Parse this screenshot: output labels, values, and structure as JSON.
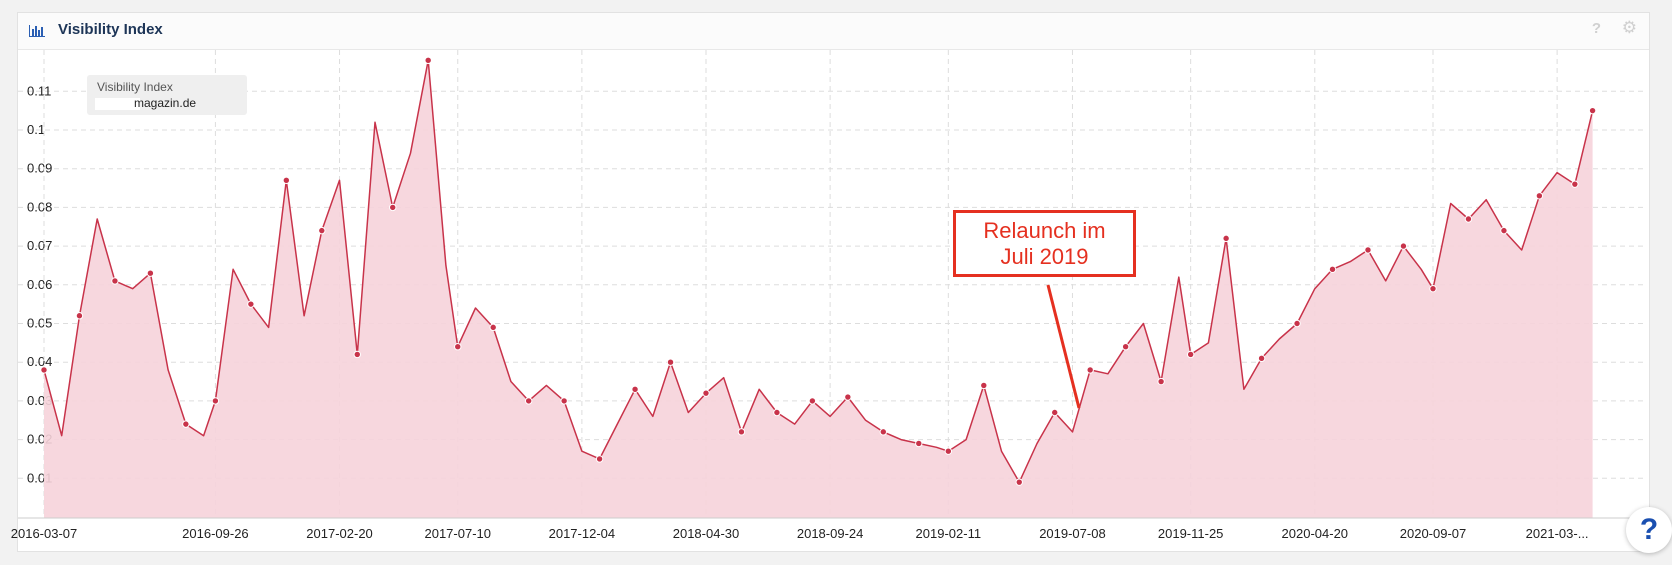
{
  "header": {
    "title": "Visibility Index",
    "icons": {
      "chart": "bar-chart-icon",
      "help": "help-icon",
      "settings": "gear-icon"
    },
    "help_label": "?"
  },
  "legend": {
    "title": "Visibility Index",
    "domain": "magazin.de"
  },
  "annotation": {
    "line1": "Relaunch im",
    "line2": "Juli 2019"
  },
  "help_fab_label": "?",
  "colors": {
    "line": "#c8334a",
    "fill": "#f6d3da",
    "annotation": "#e53020",
    "title": "#1d3557",
    "grid": "#dddddd"
  },
  "chart_data": {
    "type": "area",
    "title": "",
    "xlabel": "",
    "ylabel": "",
    "grid": true,
    "legend_position": "top-left",
    "ylim": [
      0,
      0.12
    ],
    "yticks": [
      0.01,
      0.02,
      0.03,
      0.04,
      0.05,
      0.06,
      0.07,
      0.08,
      0.09,
      0.1,
      0.11
    ],
    "ytick_labels": [
      "0.01",
      "0.02",
      "0.03",
      "0.04",
      "0.05",
      "0.06",
      "0.07",
      "0.08",
      "0.09",
      "0.1",
      "0.11"
    ],
    "xticks": [
      "2016-03-07",
      "2016-09-26",
      "2017-02-20",
      "2017-07-10",
      "2017-12-04",
      "2018-04-30",
      "2018-09-24",
      "2019-02-11",
      "2019-07-08",
      "2019-11-25",
      "2020-04-20",
      "2020-09-07",
      "2021-03-..."
    ],
    "xtick_labels": [
      "2016-03-07",
      "2016-09-26",
      "2017-02-20",
      "2017-07-10",
      "2017-12-04",
      "2018-04-30",
      "2018-09-24",
      "2019-02-11",
      "2019-07-08",
      "2019-11-25",
      "2020-04-20",
      "2020-09-07",
      "2021-03-..."
    ],
    "series": [
      {
        "name": "magazin.de",
        "x": [
          "2016-03-07",
          "2016-03-28",
          "2016-04-18",
          "2016-05-09",
          "2016-05-30",
          "2016-06-20",
          "2016-07-11",
          "2016-08-01",
          "2016-08-22",
          "2016-09-12",
          "2016-09-26",
          "2016-10-17",
          "2016-11-07",
          "2016-11-28",
          "2016-12-19",
          "2017-01-09",
          "2017-01-30",
          "2017-02-20",
          "2017-03-13",
          "2017-04-03",
          "2017-04-24",
          "2017-05-15",
          "2017-06-05",
          "2017-06-26",
          "2017-07-10",
          "2017-07-31",
          "2017-08-21",
          "2017-09-11",
          "2017-10-02",
          "2017-10-23",
          "2017-11-13",
          "2017-12-04",
          "2017-12-25",
          "2018-01-15",
          "2018-02-05",
          "2018-02-26",
          "2018-03-19",
          "2018-04-09",
          "2018-04-30",
          "2018-05-21",
          "2018-06-11",
          "2018-07-02",
          "2018-07-23",
          "2018-08-13",
          "2018-09-03",
          "2018-09-24",
          "2018-10-15",
          "2018-11-05",
          "2018-11-26",
          "2018-12-17",
          "2019-01-07",
          "2019-01-28",
          "2019-02-11",
          "2019-03-04",
          "2019-03-25",
          "2019-04-15",
          "2019-05-06",
          "2019-05-27",
          "2019-06-17",
          "2019-07-08",
          "2019-07-29",
          "2019-08-19",
          "2019-09-09",
          "2019-09-30",
          "2019-10-21",
          "2019-11-11",
          "2019-11-25",
          "2019-12-16",
          "2020-01-06",
          "2020-01-27",
          "2020-02-17",
          "2020-03-09",
          "2020-03-30",
          "2020-04-20",
          "2020-05-11",
          "2020-06-01",
          "2020-06-22",
          "2020-07-13",
          "2020-08-03",
          "2020-08-24",
          "2020-09-07",
          "2020-09-28",
          "2020-10-19",
          "2020-11-09",
          "2020-11-30",
          "2020-12-21",
          "2021-01-11",
          "2021-02-01",
          "2021-02-22",
          "2021-03-15"
        ],
        "values": [
          0.038,
          0.021,
          0.052,
          0.077,
          0.061,
          0.059,
          0.063,
          0.038,
          0.024,
          0.021,
          0.03,
          0.064,
          0.055,
          0.049,
          0.087,
          0.052,
          0.074,
          0.087,
          0.042,
          0.102,
          0.08,
          0.094,
          0.118,
          0.065,
          0.044,
          0.054,
          0.049,
          0.035,
          0.03,
          0.034,
          0.03,
          0.017,
          0.015,
          0.024,
          0.033,
          0.026,
          0.04,
          0.027,
          0.032,
          0.036,
          0.022,
          0.033,
          0.027,
          0.024,
          0.03,
          0.026,
          0.031,
          0.025,
          0.022,
          0.02,
          0.019,
          0.018,
          0.017,
          0.02,
          0.034,
          0.017,
          0.009,
          0.019,
          0.027,
          0.022,
          0.038,
          0.037,
          0.044,
          0.05,
          0.035,
          0.062,
          0.042,
          0.045,
          0.072,
          0.033,
          0.041,
          0.046,
          0.05,
          0.059,
          0.064,
          0.066,
          0.069,
          0.061,
          0.07,
          0.064,
          0.059,
          0.081,
          0.077,
          0.082,
          0.074,
          0.069,
          0.083,
          0.089,
          0.086,
          0.105
        ]
      }
    ]
  }
}
